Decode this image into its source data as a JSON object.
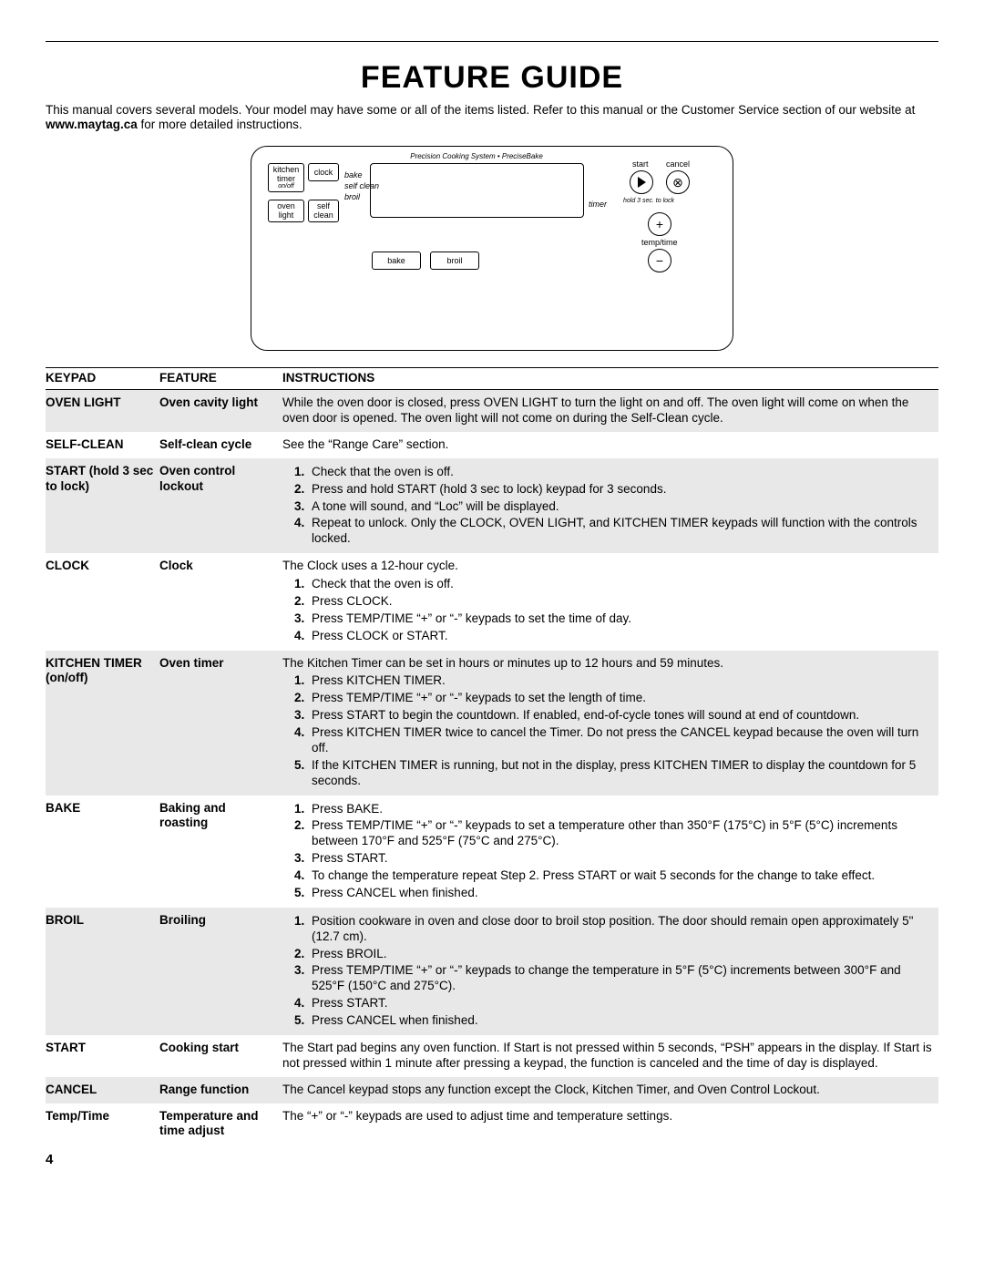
{
  "title": "FEATURE GUIDE",
  "intro_before": "This manual covers several models. Your model may have some or all of the items listed. Refer to this manual or the Customer Service section of our website at ",
  "intro_bold": "www.maytag.ca",
  "intro_after": " for more detailed instructions.",
  "panel": {
    "tagline": "Precision Cooking System • PreciseBake",
    "kitchen_timer": "kitchen\ntimer",
    "kitchen_sub": "on/off",
    "clock": "clock",
    "mode_bake": "bake",
    "mode_selfclean": "self clean",
    "mode_broil": "broil",
    "oven_light": "oven\nlight",
    "self_clean": "self\nclean",
    "timer_lbl": "timer",
    "bake_btn": "bake",
    "broil_btn": "broil",
    "start_lbl": "start",
    "cancel_lbl": "cancel",
    "hold_lbl": "hold 3 sec. to lock",
    "temp_time": "temp/time"
  },
  "headers": {
    "keypad": "KEYPAD",
    "feature": "FEATURE",
    "instructions": "INSTRUCTIONS"
  },
  "rows": [
    {
      "shade": true,
      "keypad": "OVEN LIGHT",
      "feature": "Oven cavity light",
      "text": "While the oven door is closed, press OVEN LIGHT to turn the light on and off. The oven light will come on when the oven door is opened. The oven light will not come on during the Self-Clean cycle."
    },
    {
      "shade": false,
      "keypad": "SELF-CLEAN",
      "feature": "Self-clean cycle",
      "text": "See the “Range Care” section."
    },
    {
      "shade": true,
      "keypad": "START (hold 3 sec to lock)",
      "feature": "Oven control lockout",
      "steps": [
        "Check that the oven is off.",
        "Press and hold START (hold 3 sec to lock) keypad for 3 seconds.",
        "A tone will sound, and “Loc” will be displayed.",
        "Repeat to unlock. Only the CLOCK, OVEN LIGHT, and KITCHEN TIMER keypads will function with the controls locked."
      ]
    },
    {
      "shade": false,
      "keypad": "CLOCK",
      "feature": "Clock",
      "lead": "The Clock uses a 12-hour cycle.",
      "steps": [
        "Check that the oven is off.",
        "Press CLOCK.",
        "Press TEMP/TIME “+” or “-” keypads to set the time of day.",
        "Press CLOCK or START."
      ]
    },
    {
      "shade": true,
      "keypad": "KITCHEN TIMER (on/off)",
      "feature": "Oven timer",
      "lead": "The Kitchen Timer can be set in hours or minutes up to 12 hours and 59 minutes.",
      "steps": [
        "Press KITCHEN TIMER.",
        "Press TEMP/TIME “+” or “-” keypads to set the length of time.",
        "Press START to begin the countdown. If enabled, end-of-cycle tones will sound at end of countdown.",
        "Press KITCHEN TIMER twice to cancel the Timer. Do not press the CANCEL keypad because the oven will turn off.",
        "If the KITCHEN TIMER is running, but not in the display, press KITCHEN TIMER to display the countdown for 5 seconds."
      ]
    },
    {
      "shade": false,
      "keypad": "BAKE",
      "feature": "Baking and roasting",
      "steps": [
        "Press BAKE.",
        "Press TEMP/TIME “+” or “-” keypads to set a temperature other than 350°F (175°C) in 5°F (5°C) increments between 170°F and 525°F (75°C and 275°C).",
        "Press START.",
        "To change the temperature repeat Step 2. Press START or wait 5 seconds for the change to take effect.",
        "Press CANCEL when finished."
      ]
    },
    {
      "shade": true,
      "keypad": "BROIL",
      "feature": "Broiling",
      "steps": [
        "Position cookware in oven and close door to broil stop position. The door should remain open approximately 5\" (12.7 cm).",
        "Press BROIL.",
        "Press TEMP/TIME “+” or “-” keypads to change the temperature in 5°F (5°C) increments between 300°F and 525°F (150°C and 275°C).",
        "Press START.",
        "Press CANCEL when finished."
      ]
    },
    {
      "shade": false,
      "keypad": "START",
      "feature": "Cooking start",
      "text": "The Start pad begins any oven function. If Start is not pressed within 5 seconds, “PSH” appears in the display. If Start is not pressed within 1 minute after pressing a keypad, the function is canceled and the time of day is displayed."
    },
    {
      "shade": true,
      "keypad": "CANCEL",
      "feature": "Range function",
      "text": "The Cancel keypad stops any function except the Clock, Kitchen Timer, and Oven Control Lockout."
    },
    {
      "shade": false,
      "keypad": "Temp/Time",
      "feature": "Temperature and time adjust",
      "text": "The “+” or “-” keypads are used to adjust time and temperature settings."
    }
  ],
  "page": "4"
}
